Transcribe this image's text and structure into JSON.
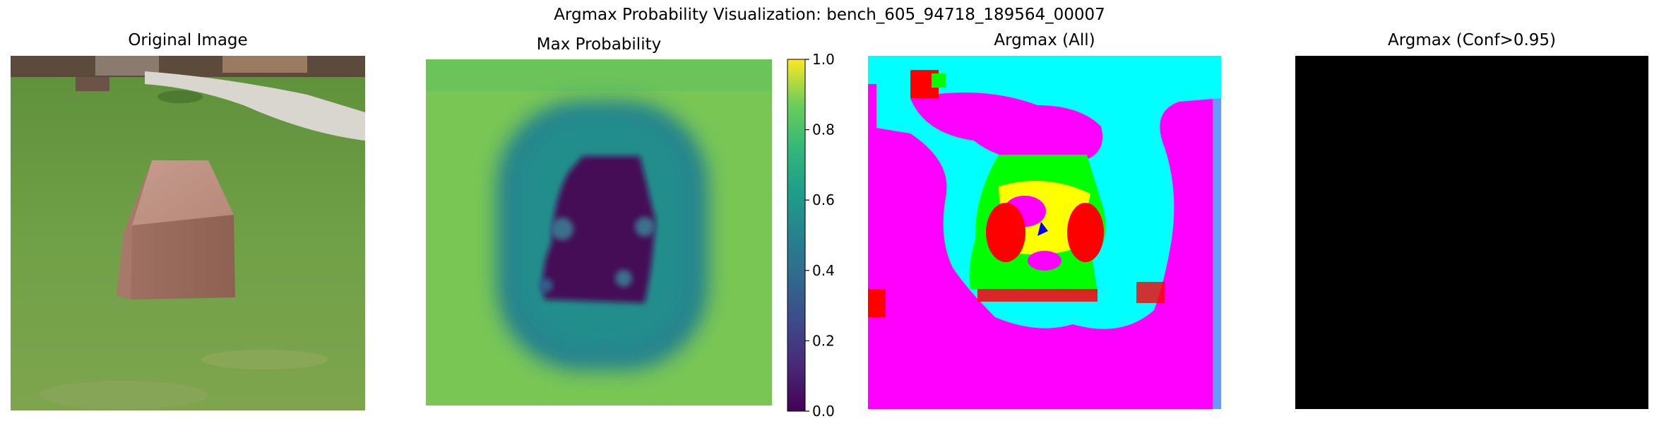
{
  "figure": {
    "suptitle": "Argmax Probability Visualization: bench_605_94718_189564_00007"
  },
  "panels": {
    "original": {
      "title": "Original Image"
    },
    "maxprob": {
      "title": "Max Probability"
    },
    "argmax_all": {
      "title": "Argmax (All)"
    },
    "argmax_conf": {
      "title": "Argmax (Conf>0.95)"
    }
  },
  "chart_data": {
    "type": "heatmap",
    "title": "Max Probability",
    "colormap": "viridis",
    "colorbar": {
      "range": [
        0.0,
        1.0
      ],
      "ticks": [
        0.0,
        0.2,
        0.4,
        0.6,
        0.8,
        1.0
      ],
      "tick_labels": [
        "0.0",
        "0.2",
        "0.4",
        "0.6",
        "0.8",
        "1.0"
      ]
    },
    "approx_values": {
      "background": 0.75,
      "ring_around_object": 0.55,
      "object_region": 0.05,
      "object_blobs": 0.45
    }
  },
  "colors": {
    "argmax_classes": [
      "#ff00ff",
      "#00ffff",
      "#00ff00",
      "#ffff00",
      "#ff0000",
      "#0000ff",
      "#00ff7f"
    ],
    "conf_panel": "#000000",
    "grass": "#6fa047",
    "bench_stone": "#b88a7c"
  }
}
